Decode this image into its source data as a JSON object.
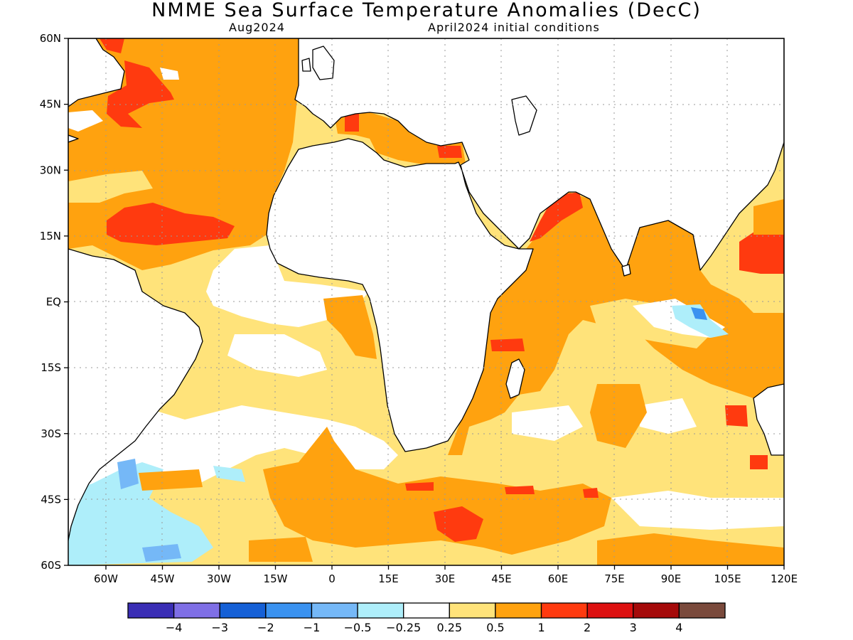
{
  "title": "NMME Sea Surface Temperature Anomalies (DecC)",
  "subtitle_left": "Aug2024",
  "subtitle_right": "April2024 initial conditions",
  "map": {
    "lon_range": [
      -70,
      120
    ],
    "lat_range": [
      -60,
      60
    ],
    "lat_labels": [
      {
        "lat": 60,
        "text": "60N"
      },
      {
        "lat": 45,
        "text": "45N"
      },
      {
        "lat": 30,
        "text": "30N"
      },
      {
        "lat": 15,
        "text": "15N"
      },
      {
        "lat": 0,
        "text": "EQ"
      },
      {
        "lat": -15,
        "text": "15S"
      },
      {
        "lat": -30,
        "text": "30S"
      },
      {
        "lat": -45,
        "text": "45S"
      },
      {
        "lat": -60,
        "text": "60S"
      }
    ],
    "lon_labels": [
      {
        "lon": -60,
        "text": "60W"
      },
      {
        "lon": -45,
        "text": "45W"
      },
      {
        "lon": -30,
        "text": "30W"
      },
      {
        "lon": -15,
        "text": "15W"
      },
      {
        "lon": 0,
        "text": "0"
      },
      {
        "lon": 15,
        "text": "15E"
      },
      {
        "lon": 30,
        "text": "30E"
      },
      {
        "lon": 45,
        "text": "45E"
      },
      {
        "lon": 60,
        "text": "60E"
      },
      {
        "lon": 75,
        "text": "75E"
      },
      {
        "lon": 90,
        "text": "90E"
      },
      {
        "lon": 105,
        "text": "105E"
      },
      {
        "lon": 120,
        "text": "120E"
      }
    ]
  },
  "colorbar": {
    "colors": [
      "#3a2eb5",
      "#7f6fe6",
      "#1560d6",
      "#3a92f0",
      "#75b8f7",
      "#aeeefa",
      "#ffffff",
      "#ffe37a",
      "#ffa20f",
      "#ff3a0f",
      "#dd1010",
      "#a50a0a",
      "#7a4a3c"
    ],
    "labels": [
      "−4",
      "−3",
      "−2",
      "−1",
      "−0.5",
      "−0.25",
      "0.25",
      "0.5",
      "1",
      "2",
      "3",
      "4"
    ]
  },
  "colors": {
    "ocean_fill_05_1": "#ffa20f",
    "ocean_fill_025_05": "#ffe37a",
    "anomaly_high": "#ff3a0f",
    "anomaly_neg": "#aeeefa",
    "coast_line": "#000000",
    "grid_line": "#9a9a9a"
  }
}
